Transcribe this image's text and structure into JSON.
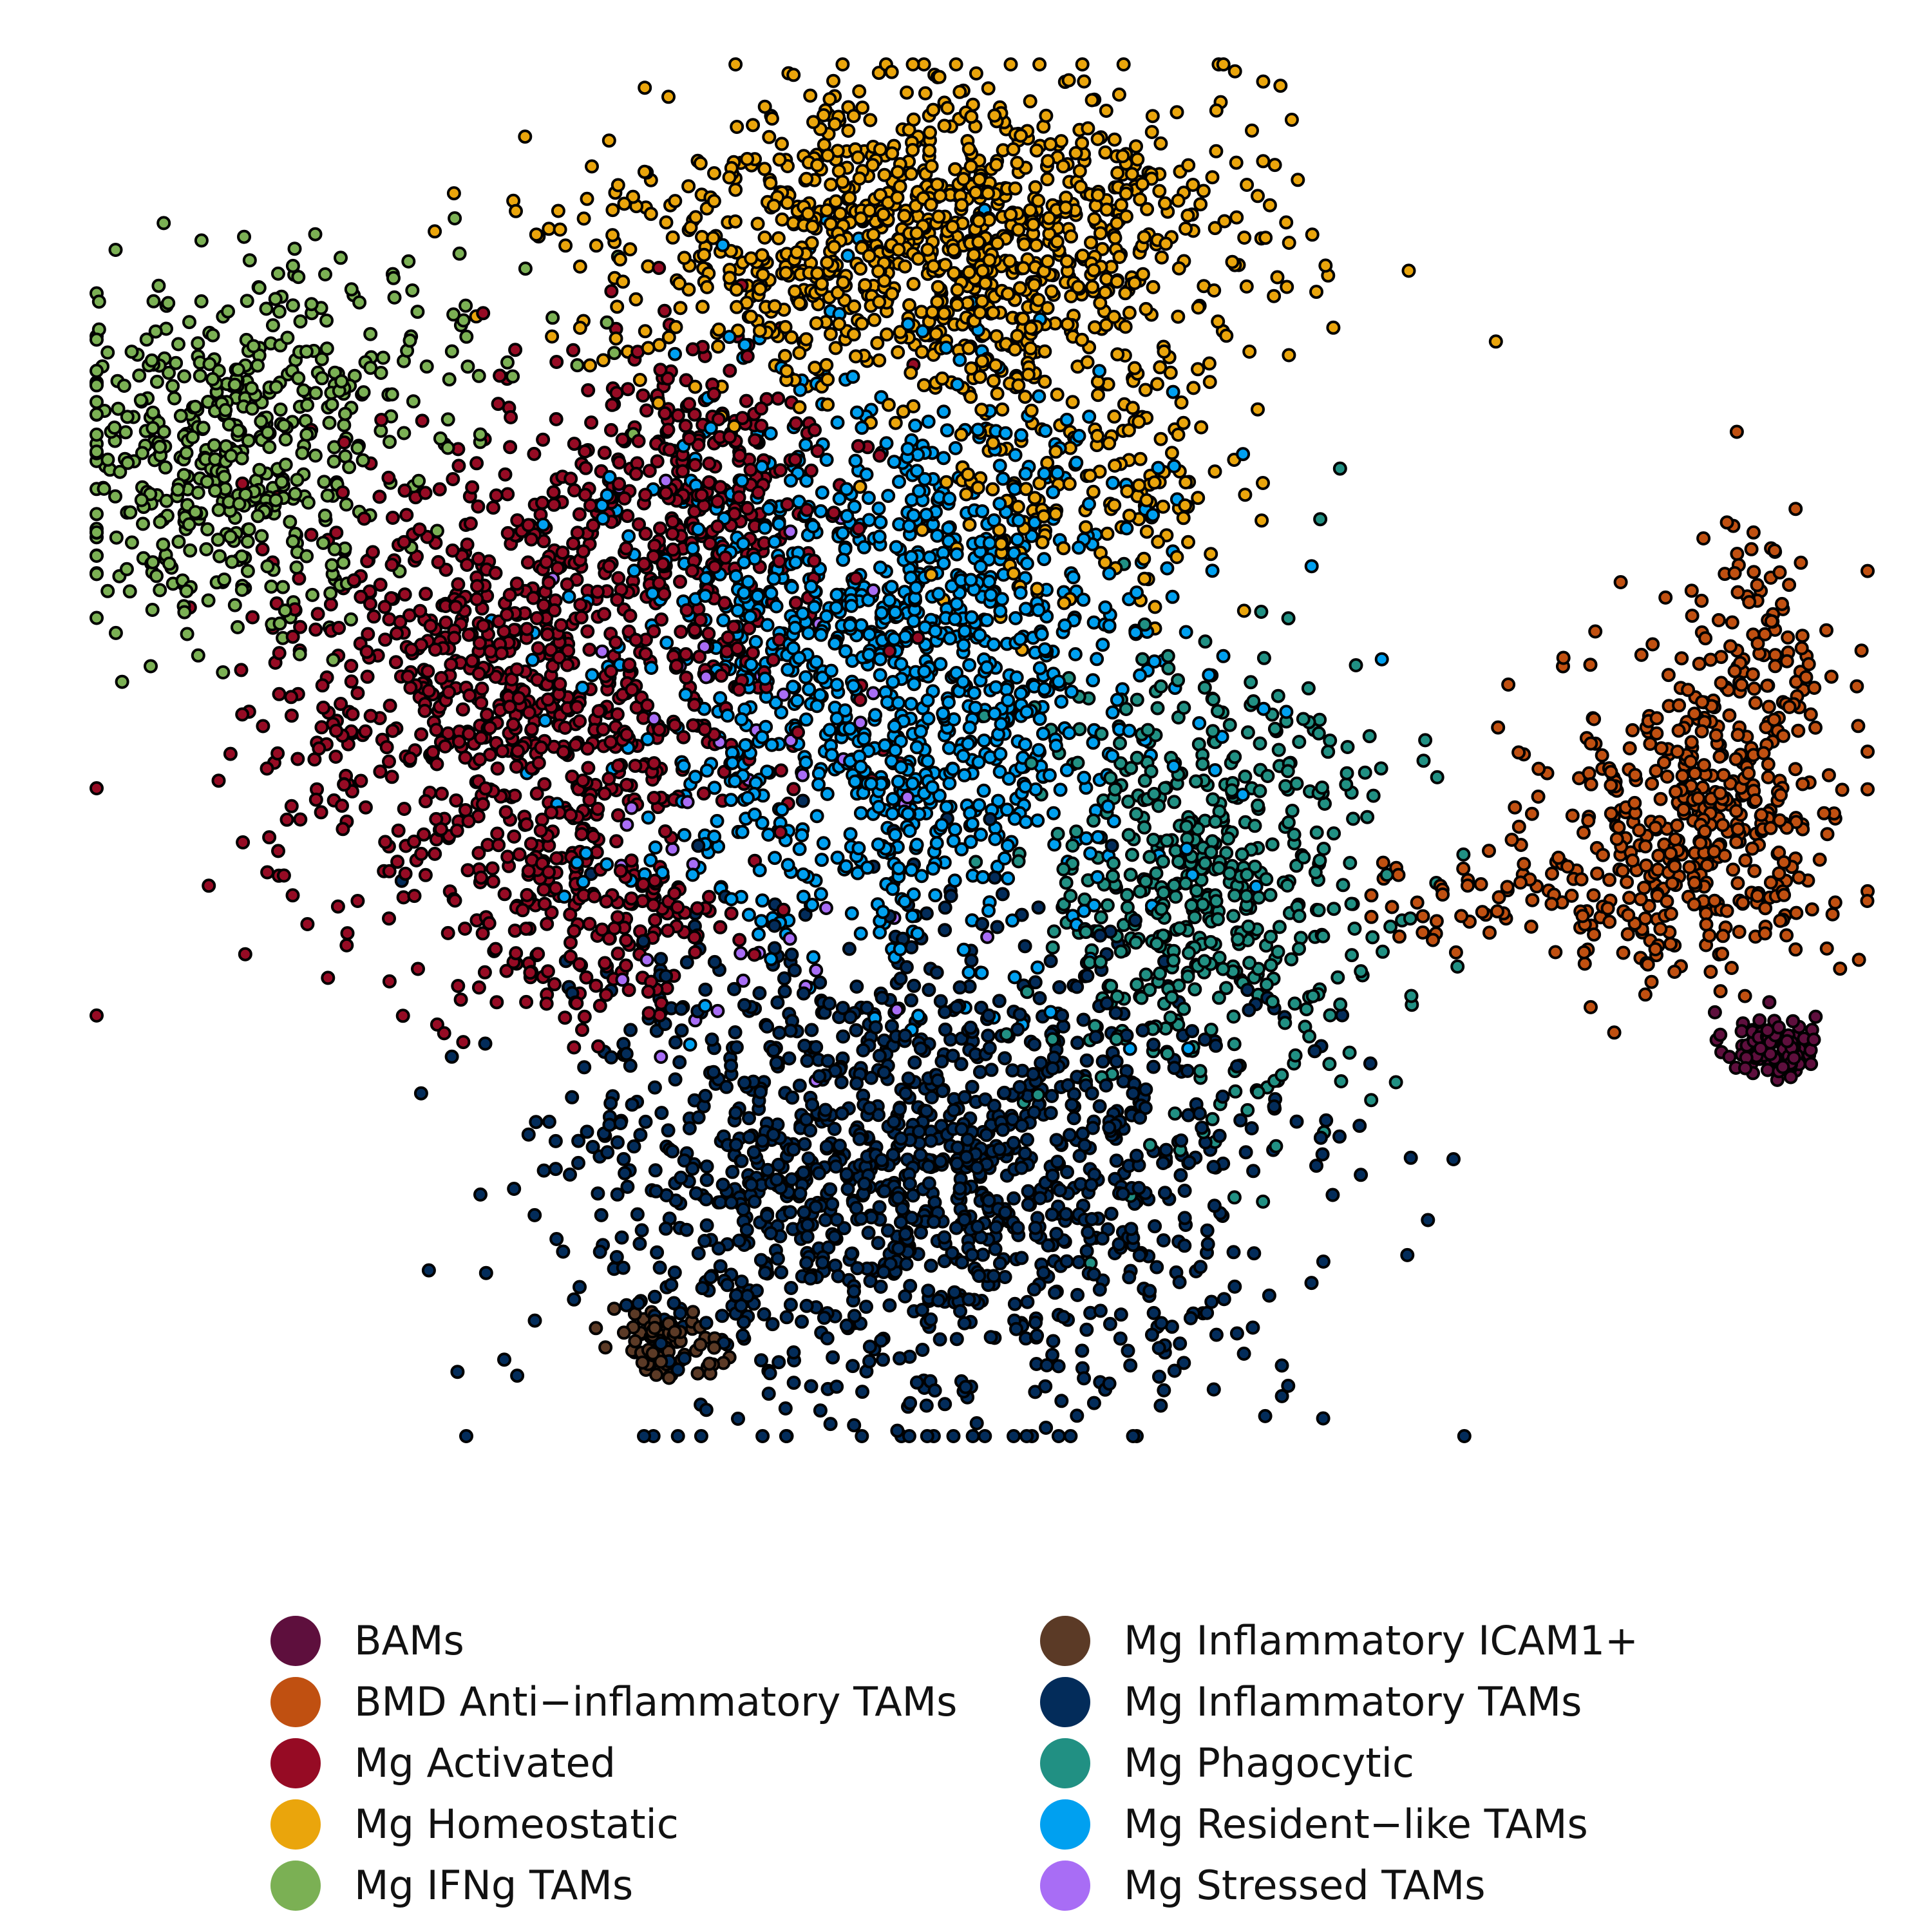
{
  "chart_data": {
    "type": "scatter",
    "title": "",
    "xlabel": "",
    "ylabel": "",
    "axes_visible": false,
    "grid": false,
    "legend_position": "bottom",
    "legend_columns": 2,
    "point_style": "filled circle with black outline",
    "series": [
      {
        "name": "BAMs",
        "color": "#5e0f3d",
        "clusters": [
          {
            "cx": 13.7,
            "cy": -4.6,
            "sx": 0.3,
            "sy": 0.25,
            "n": 90
          }
        ]
      },
      {
        "name": "BMD Anti−inflammatory TAMs",
        "color": "#c05011",
        "clusters": [
          {
            "cx": 12.8,
            "cy": -1.3,
            "sx": 1.0,
            "sy": 1.2,
            "n": 420
          },
          {
            "cx": 13.6,
            "cy": 1.2,
            "sx": 0.5,
            "sy": 1.0,
            "n": 90
          },
          {
            "cx": 10.3,
            "cy": -2.6,
            "sx": 1.2,
            "sy": 0.35,
            "n": 70
          }
        ]
      },
      {
        "name": "Mg Activated",
        "color": "#960b24",
        "clusters": [
          {
            "cx": -2.8,
            "cy": 0.6,
            "sx": 1.7,
            "sy": 1.7,
            "n": 900
          },
          {
            "cx": -0.5,
            "cy": 3.5,
            "sx": 0.9,
            "sy": 1.2,
            "n": 250
          },
          {
            "cx": -2.0,
            "cy": -3.0,
            "sx": 1.0,
            "sy": 0.8,
            "n": 150
          }
        ]
      },
      {
        "name": "Mg Homeostatic",
        "color": "#eaa50c",
        "clusters": [
          {
            "cx": 2.6,
            "cy": 7.0,
            "sx": 2.0,
            "sy": 1.1,
            "n": 1100
          },
          {
            "cx": 4.6,
            "cy": 3.6,
            "sx": 1.0,
            "sy": 0.9,
            "n": 180
          }
        ]
      },
      {
        "name": "Mg IFNg TAMs",
        "color": "#7bb054",
        "clusters": [
          {
            "cx": -6.8,
            "cy": 3.9,
            "sx": 1.1,
            "sy": 1.2,
            "n": 450
          },
          {
            "cx": -4.5,
            "cy": 5.4,
            "sx": 1.3,
            "sy": 0.8,
            "n": 80
          }
        ]
      },
      {
        "name": "Mg Inflammatory ICAM1+",
        "color": "#5b3a26",
        "clusters": [
          {
            "cx": -0.9,
            "cy": -8.9,
            "sx": 0.45,
            "sy": 0.25,
            "n": 70
          }
        ]
      },
      {
        "name": "Mg Inflammatory TAMs",
        "color": "#032c5a",
        "clusters": [
          {
            "cx": 2.4,
            "cy": -6.4,
            "sx": 2.3,
            "sy": 1.7,
            "n": 1400
          }
        ]
      },
      {
        "name": "Mg Phagocytic",
        "color": "#219083",
        "clusters": [
          {
            "cx": 6.2,
            "cy": -2.3,
            "sx": 1.2,
            "sy": 1.7,
            "n": 520
          }
        ]
      },
      {
        "name": "Mg Resident−like TAMs",
        "color": "#00a0f0",
        "clusters": [
          {
            "cx": 2.0,
            "cy": 0.9,
            "sx": 1.8,
            "sy": 2.0,
            "n": 1200
          }
        ]
      },
      {
        "name": "Mg Stressed TAMs",
        "color": "#a86df5",
        "clusters": [
          {
            "cx": 0.4,
            "cy": -1.0,
            "sx": 1.5,
            "sy": 2.0,
            "n": 60
          }
        ]
      }
    ],
    "xlim": [
      -8.5,
      15
    ],
    "ylim": [
      -10.2,
      9.5
    ]
  },
  "legend": {
    "items": [
      {
        "label": "BAMs",
        "color": "#5e0f3d"
      },
      {
        "label": "BMD Anti−inflammatory TAMs",
        "color": "#c05011"
      },
      {
        "label": "Mg Activated",
        "color": "#960b24"
      },
      {
        "label": "Mg Homeostatic",
        "color": "#eaa50c"
      },
      {
        "label": "Mg IFNg TAMs",
        "color": "#7bb054"
      },
      {
        "label": "Mg Inflammatory ICAM1+",
        "color": "#5b3a26"
      },
      {
        "label": "Mg Inflammatory TAMs",
        "color": "#032c5a"
      },
      {
        "label": "Mg Phagocytic",
        "color": "#219083"
      },
      {
        "label": "Mg Resident−like TAMs",
        "color": "#00a0f0"
      },
      {
        "label": "Mg Stressed TAMs",
        "color": "#a86df5"
      }
    ]
  }
}
